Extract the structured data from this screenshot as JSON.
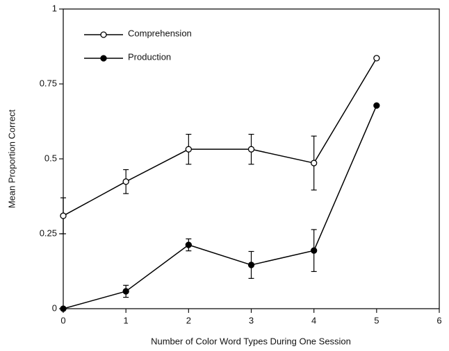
{
  "chart_data": {
    "type": "line",
    "xlabel": "Number of Color Word Types During One Session",
    "ylabel": "Mean Proportion Correct",
    "x": [
      0,
      1,
      2,
      3,
      4,
      5
    ],
    "series": [
      {
        "name": "Comprehension",
        "color": "#000000",
        "marker": "open",
        "values": [
          0.31,
          0.424,
          0.532,
          0.532,
          0.486,
          0.836
        ],
        "errors": [
          0.06,
          0.04,
          0.05,
          0.05,
          0.09,
          null
        ]
      },
      {
        "name": "Production",
        "color": "#000000",
        "marker": "filled",
        "values": [
          0,
          0.058,
          0.213,
          0.146,
          0.194,
          0.678
        ],
        "errors": [
          null,
          0.02,
          0.02,
          0.045,
          0.07,
          null
        ]
      }
    ],
    "xlim": [
      0,
      6
    ],
    "xticks": [
      0,
      1,
      2,
      3,
      4,
      5,
      6
    ],
    "ylim": [
      0,
      1
    ],
    "yticks": [
      0,
      0.25,
      0.5,
      0.75,
      1
    ],
    "grid": false,
    "legend": "upper left"
  }
}
